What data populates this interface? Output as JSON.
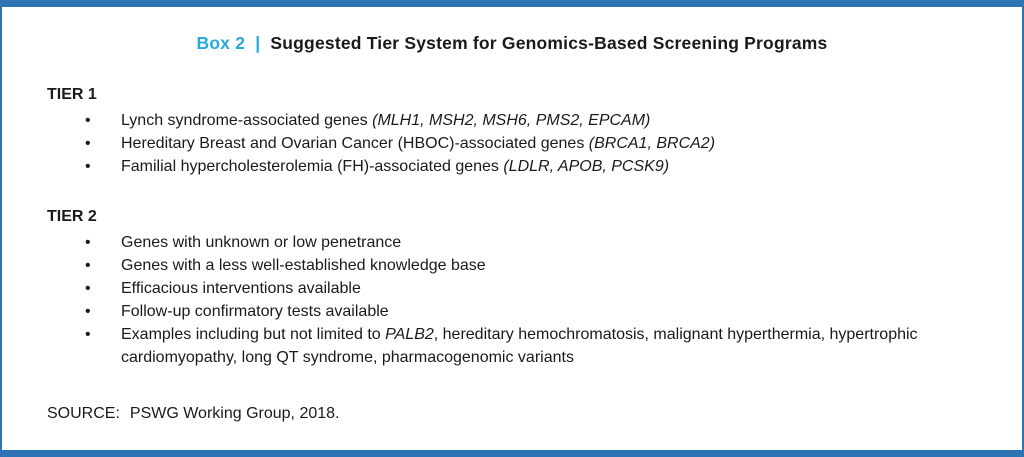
{
  "colors": {
    "border_blue": "#2e74b5",
    "box_label_cyan": "#29a8e0",
    "text": "#1a1a1a"
  },
  "header": {
    "box_label": "Box 2",
    "separator": "|",
    "title": "Suggested Tier System for Genomics-Based Screening Programs"
  },
  "bullet_char": "•",
  "tiers": [
    {
      "label": "TIER 1",
      "items": [
        {
          "segments": [
            {
              "text": "Lynch syndrome-associated genes ",
              "italic": false
            },
            {
              "text": "(MLH1, MSH2, MSH6, PMS2, EPCAM)",
              "italic": true
            }
          ]
        },
        {
          "segments": [
            {
              "text": "Hereditary Breast and Ovarian Cancer (HBOC)-associated genes ",
              "italic": false
            },
            {
              "text": "(BRCA1, BRCA2)",
              "italic": true
            }
          ]
        },
        {
          "segments": [
            {
              "text": "Familial hypercholesterolemia (FH)-associated genes ",
              "italic": false
            },
            {
              "text": "(LDLR, APOB, PCSK9)",
              "italic": true
            }
          ]
        }
      ]
    },
    {
      "label": "TIER 2",
      "items": [
        {
          "segments": [
            {
              "text": "Genes with unknown or low penetrance",
              "italic": false
            }
          ]
        },
        {
          "segments": [
            {
              "text": "Genes with a less well-established knowledge base",
              "italic": false
            }
          ]
        },
        {
          "segments": [
            {
              "text": "Efficacious interventions available",
              "italic": false
            }
          ]
        },
        {
          "segments": [
            {
              "text": "Follow-up confirmatory tests available",
              "italic": false
            }
          ]
        },
        {
          "segments": [
            {
              "text": "Examples including but not limited to ",
              "italic": false
            },
            {
              "text": "PALB2",
              "italic": true
            },
            {
              "text": ", hereditary hemochromatosis, malignant hyperthermia, hypertrophic cardiomyopathy, long QT syndrome, pharmacogenomic variants",
              "italic": false
            }
          ]
        }
      ]
    }
  ],
  "source": {
    "label": "SOURCE:",
    "text": "PSWG Working Group, 2018."
  }
}
